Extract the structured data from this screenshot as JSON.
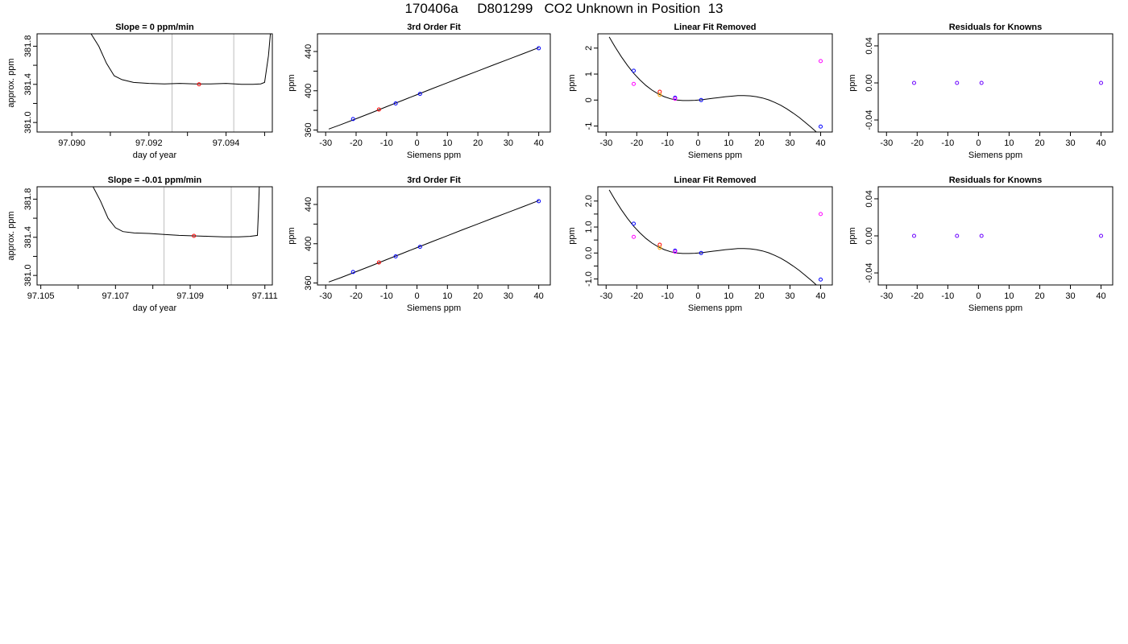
{
  "title": "170406a     D801299   CO2 Unknown in Position  13",
  "chart_data": [
    {
      "type": "line",
      "title": "Slope =  0  ppm/min",
      "xlabel": "day of year",
      "ylabel": "approx. ppm",
      "xlim": [
        97.0891,
        97.0952
      ],
      "ylim": [
        380.9,
        381.93
      ],
      "xticks": [
        97.09,
        97.091,
        97.092,
        97.093,
        97.094,
        97.095
      ],
      "xtick_labels": [
        "97.090",
        "",
        "97.092",
        "",
        "97.094",
        ""
      ],
      "yticks": [
        381.0,
        381.2,
        381.4,
        381.6,
        381.8
      ],
      "ytick_labels": [
        "381.0",
        "",
        "381.4",
        "",
        "381.8"
      ],
      "vlines": [
        97.0926,
        97.0942
      ],
      "series": [
        {
          "color": "#000000",
          "x": [
            97.0905,
            97.0907,
            97.0909,
            97.0911,
            97.0913,
            97.0916,
            97.092,
            97.0924,
            97.0928,
            97.0932,
            97.0936,
            97.094,
            97.0944,
            97.0947,
            97.0949,
            97.095,
            97.0951,
            97.09515
          ],
          "y": [
            381.93,
            381.8,
            381.62,
            381.49,
            381.45,
            381.42,
            381.41,
            381.405,
            381.41,
            381.405,
            381.405,
            381.41,
            381.4,
            381.4,
            381.405,
            381.42,
            381.7,
            381.93
          ]
        }
      ],
      "points": [
        {
          "x": 97.0933,
          "y": 381.4,
          "color": "#ff0000"
        }
      ]
    },
    {
      "type": "scatter",
      "title": "3rd Order Fit",
      "xlabel": "Siemens ppm",
      "ylabel": "ppm",
      "xlim": [
        -32.7,
        43.8
      ],
      "ylim": [
        358,
        458
      ],
      "xticks": [
        -30,
        -20,
        -10,
        0,
        10,
        20,
        30,
        40
      ],
      "xtick_labels": [
        "-30",
        "-20",
        "-10",
        "0",
        "10",
        "20",
        "30",
        "40"
      ],
      "yticks": [
        360,
        380,
        400,
        420,
        440
      ],
      "ytick_labels": [
        "360",
        "",
        "400",
        "",
        "440"
      ],
      "curve": {
        "color": "#000000",
        "x": [
          -29,
          -25,
          -20,
          -15,
          -10,
          -5,
          0,
          5,
          10,
          15,
          20,
          25,
          30,
          35,
          40
        ],
        "y": [
          361,
          365.5,
          371.5,
          377.6,
          383.8,
          389.9,
          396,
          402.2,
          408.2,
          414.2,
          420.1,
          426.1,
          432,
          437.9,
          443.9
        ]
      },
      "points": [
        {
          "x": -21,
          "y": 371.2,
          "color": "#0000ff"
        },
        {
          "x": -12.5,
          "y": 380.9,
          "color": "#ff0000"
        },
        {
          "x": -7,
          "y": 387.1,
          "color": "#0000ff"
        },
        {
          "x": 1,
          "y": 396.8,
          "color": "#0000ff"
        },
        {
          "x": 40,
          "y": 443.3,
          "color": "#0000ff"
        }
      ]
    },
    {
      "type": "scatter",
      "title": "Linear Fit Removed",
      "xlabel": "Siemens ppm",
      "ylabel": "ppm",
      "xlim": [
        -32.7,
        43.8
      ],
      "ylim": [
        -1.23,
        2.55
      ],
      "xticks": [
        -30,
        -20,
        -10,
        0,
        10,
        20,
        30,
        40
      ],
      "xtick_labels": [
        "-30",
        "-20",
        "-10",
        "0",
        "10",
        "20",
        "30",
        "40"
      ],
      "yticks": [
        -1,
        0,
        1,
        2
      ],
      "ytick_labels": [
        "-1",
        "0",
        "1",
        "2"
      ],
      "curve": {
        "color": "#000000",
        "x": [
          -29,
          -27,
          -25,
          -23,
          -21,
          -19,
          -17,
          -15,
          -13,
          -11,
          -9,
          -7,
          -5,
          -3,
          -1,
          1,
          3,
          5,
          7,
          9,
          11,
          13,
          15,
          17,
          19,
          21,
          23,
          25,
          27,
          29,
          31,
          33,
          35,
          37,
          39,
          40.5
        ],
        "y": [
          2.43,
          2.03,
          1.66,
          1.33,
          1.03,
          0.78,
          0.56,
          0.38,
          0.24,
          0.13,
          0.05,
          0.0,
          -0.02,
          -0.02,
          -0.01,
          0.01,
          0.04,
          0.07,
          0.1,
          0.13,
          0.15,
          0.17,
          0.17,
          0.16,
          0.13,
          0.08,
          0.01,
          -0.09,
          -0.2,
          -0.34,
          -0.5,
          -0.67,
          -0.86,
          -1.06,
          -1.27,
          -1.43
        ]
      },
      "points": [
        {
          "x": -21,
          "y": 1.13,
          "color": "#0000ff"
        },
        {
          "x": -21,
          "y": 0.62,
          "color": "#ff00ff"
        },
        {
          "x": -12.5,
          "y": 0.32,
          "color": "#ff0000"
        },
        {
          "x": -12.5,
          "y": 0.2,
          "color": "#ffa500"
        },
        {
          "x": -7.5,
          "y": 0.09,
          "color": "#0000ff"
        },
        {
          "x": -7.5,
          "y": 0.05,
          "color": "#ff00ff"
        },
        {
          "x": 1,
          "y": 0.0,
          "color": "#0000ff"
        },
        {
          "x": 40,
          "y": 1.5,
          "color": "#ff00ff"
        },
        {
          "x": 40,
          "y": -1.02,
          "color": "#0000ff"
        }
      ]
    },
    {
      "type": "scatter",
      "title": "Residuals for Knowns",
      "xlabel": "Siemens ppm",
      "ylabel": "ppm",
      "xlim": [
        -32.7,
        43.8
      ],
      "ylim": [
        -0.053,
        0.053
      ],
      "xticks": [
        -30,
        -20,
        -10,
        0,
        10,
        20,
        30,
        40
      ],
      "xtick_labels": [
        "-30",
        "-20",
        "-10",
        "0",
        "10",
        "20",
        "30",
        "40"
      ],
      "yticks": [
        -0.04,
        0.0,
        0.04
      ],
      "ytick_labels": [
        "-0.04",
        "0.00",
        "0.04"
      ],
      "points": [
        {
          "x": -21,
          "y": 0.0,
          "color": "#6a00ff"
        },
        {
          "x": -7,
          "y": 0.0,
          "color": "#6a00ff"
        },
        {
          "x": 1,
          "y": 0.0,
          "color": "#6a00ff"
        },
        {
          "x": 40,
          "y": 0.0,
          "color": "#6a00ff"
        }
      ]
    },
    {
      "type": "line",
      "title": "Slope =  -0.01  ppm/min",
      "xlabel": "day of year",
      "ylabel": "approx. ppm",
      "xlim": [
        97.1049,
        97.1112
      ],
      "ylim": [
        380.9,
        381.93
      ],
      "xticks": [
        97.105,
        97.106,
        97.107,
        97.108,
        97.109,
        97.11,
        97.111
      ],
      "xtick_labels": [
        "97.105",
        "",
        "97.107",
        "",
        "97.109",
        "",
        "97.111"
      ],
      "yticks": [
        381.0,
        381.2,
        381.4,
        381.6,
        381.8
      ],
      "ytick_labels": [
        "381.0",
        "",
        "381.4",
        "",
        "381.8"
      ],
      "vlines": [
        97.1083,
        97.1101
      ],
      "series": [
        {
          "color": "#000000",
          "x": [
            97.1064,
            97.1066,
            97.1068,
            97.107,
            97.1072,
            97.1075,
            97.1079,
            97.1083,
            97.1087,
            97.1091,
            97.1095,
            97.1099,
            97.1103,
            97.1106,
            97.1108,
            97.11083,
            97.11085
          ],
          "y": [
            381.93,
            381.78,
            381.6,
            381.5,
            381.46,
            381.445,
            381.44,
            381.43,
            381.42,
            381.415,
            381.41,
            381.405,
            381.405,
            381.41,
            381.42,
            381.7,
            381.93
          ]
        }
      ],
      "points": [
        {
          "x": 97.1091,
          "y": 381.415,
          "color": "#ff0000"
        }
      ]
    },
    {
      "type": "scatter",
      "title": "3rd Order Fit",
      "xlabel": "Siemens ppm",
      "ylabel": "ppm",
      "xlim": [
        -32.7,
        43.8
      ],
      "ylim": [
        358,
        458
      ],
      "xticks": [
        -30,
        -20,
        -10,
        0,
        10,
        20,
        30,
        40
      ],
      "xtick_labels": [
        "-30",
        "-20",
        "-10",
        "0",
        "10",
        "20",
        "30",
        "40"
      ],
      "yticks": [
        360,
        380,
        400,
        420,
        440
      ],
      "ytick_labels": [
        "360",
        "",
        "400",
        "",
        "440"
      ],
      "curve": {
        "color": "#000000",
        "x": [
          -29,
          -25,
          -20,
          -15,
          -10,
          -5,
          0,
          5,
          10,
          15,
          20,
          25,
          30,
          35,
          40
        ],
        "y": [
          361,
          365.5,
          371.5,
          377.6,
          383.8,
          389.9,
          396,
          402.2,
          408.2,
          414.2,
          420.1,
          426.1,
          432,
          437.9,
          443.9
        ]
      },
      "points": [
        {
          "x": -21,
          "y": 371.2,
          "color": "#0000ff"
        },
        {
          "x": -12.5,
          "y": 380.9,
          "color": "#ff0000"
        },
        {
          "x": -7,
          "y": 387.1,
          "color": "#0000ff"
        },
        {
          "x": 1,
          "y": 396.8,
          "color": "#0000ff"
        },
        {
          "x": 40,
          "y": 443.3,
          "color": "#0000ff"
        }
      ]
    },
    {
      "type": "scatter",
      "title": "Linear Fit Removed",
      "xlabel": "Siemens ppm",
      "ylabel": "ppm",
      "xlim": [
        -32.7,
        43.8
      ],
      "ylim": [
        -1.23,
        2.55
      ],
      "xticks": [
        -30,
        -20,
        -10,
        0,
        10,
        20,
        30,
        40
      ],
      "xtick_labels": [
        "-30",
        "-20",
        "-10",
        "0",
        "10",
        "20",
        "30",
        "40"
      ],
      "yticks": [
        -1.0,
        -0.5,
        0.0,
        0.5,
        1.0,
        1.5,
        2.0
      ],
      "ytick_labels": [
        "-1.0",
        "",
        "0.0",
        "",
        "1.0",
        "",
        "2.0"
      ],
      "curve": {
        "color": "#000000",
        "x": [
          -29,
          -27,
          -25,
          -23,
          -21,
          -19,
          -17,
          -15,
          -13,
          -11,
          -9,
          -7,
          -5,
          -3,
          -1,
          1,
          3,
          5,
          7,
          9,
          11,
          13,
          15,
          17,
          19,
          21,
          23,
          25,
          27,
          29,
          31,
          33,
          35,
          37,
          39,
          40.5
        ],
        "y": [
          2.43,
          2.03,
          1.66,
          1.33,
          1.03,
          0.78,
          0.56,
          0.38,
          0.24,
          0.13,
          0.05,
          0.0,
          -0.02,
          -0.02,
          -0.01,
          0.01,
          0.04,
          0.07,
          0.1,
          0.13,
          0.15,
          0.17,
          0.17,
          0.16,
          0.13,
          0.08,
          0.01,
          -0.09,
          -0.2,
          -0.34,
          -0.5,
          -0.67,
          -0.86,
          -1.06,
          -1.27,
          -1.43
        ]
      },
      "points": [
        {
          "x": -21,
          "y": 1.13,
          "color": "#0000ff"
        },
        {
          "x": -21,
          "y": 0.62,
          "color": "#ff00ff"
        },
        {
          "x": -12.5,
          "y": 0.32,
          "color": "#ff0000"
        },
        {
          "x": -12.5,
          "y": 0.2,
          "color": "#ffa500"
        },
        {
          "x": -7.5,
          "y": 0.09,
          "color": "#0000ff"
        },
        {
          "x": -7.5,
          "y": 0.05,
          "color": "#ff00ff"
        },
        {
          "x": 1,
          "y": 0.0,
          "color": "#0000ff"
        },
        {
          "x": 40,
          "y": 1.5,
          "color": "#ff00ff"
        },
        {
          "x": 40,
          "y": -1.02,
          "color": "#0000ff"
        }
      ]
    },
    {
      "type": "scatter",
      "title": "Residuals for Knowns",
      "xlabel": "Siemens ppm",
      "ylabel": "ppm",
      "xlim": [
        -32.7,
        43.8
      ],
      "ylim": [
        -0.053,
        0.053
      ],
      "xticks": [
        -30,
        -20,
        -10,
        0,
        10,
        20,
        30,
        40
      ],
      "xtick_labels": [
        "-30",
        "-20",
        "-10",
        "0",
        "10",
        "20",
        "30",
        "40"
      ],
      "yticks": [
        -0.04,
        0.0,
        0.04
      ],
      "ytick_labels": [
        "-0.04",
        "0.00",
        "0.04"
      ],
      "points": [
        {
          "x": -21,
          "y": 0.0,
          "color": "#6a00ff"
        },
        {
          "x": -7,
          "y": 0.0,
          "color": "#6a00ff"
        },
        {
          "x": 1,
          "y": 0.0,
          "color": "#6a00ff"
        },
        {
          "x": 40,
          "y": 0.0,
          "color": "#6a00ff"
        }
      ]
    }
  ]
}
